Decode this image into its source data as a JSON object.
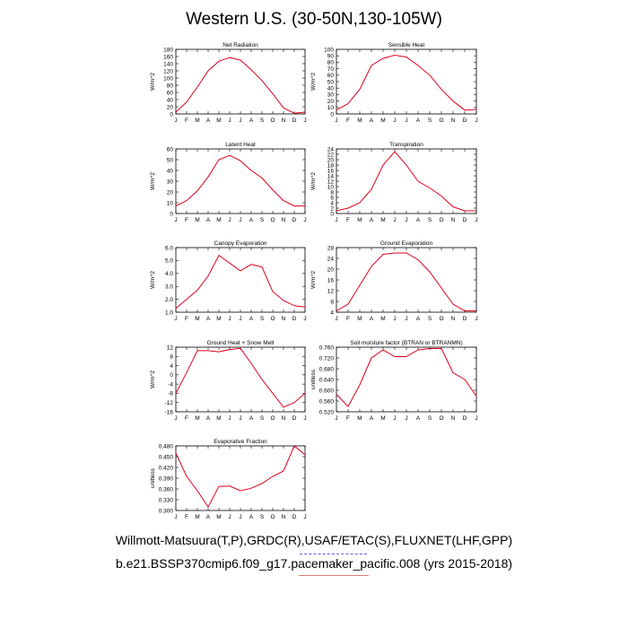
{
  "title": "Western U.S. (30-50N,130-105W)",
  "footer": {
    "line1": "Willmott-Matsuura(T,P),GRDC(R),USAF/ETAC(S),FLUXNET(LHF,GPP)",
    "line2": "b.e21.BSSP370cmip6.f09_g17.pacemaker_pacific.008 (yrs 2015-2018)"
  },
  "colors": {
    "line": "#e0001b",
    "axis": "#000000"
  },
  "months": [
    "J",
    "F",
    "M",
    "A",
    "M",
    "J",
    "J",
    "A",
    "S",
    "O",
    "N",
    "D",
    "J"
  ],
  "chart_data": [
    {
      "type": "line",
      "title": "Net Radiation",
      "ylabel": "W/m^2",
      "ylim": [
        0,
        180
      ],
      "yticks": [
        "0",
        "20",
        "40",
        "60",
        "80",
        "100",
        "120",
        "140",
        "160",
        "180"
      ],
      "series": [
        {
          "values": [
            5,
            33,
            75,
            120,
            147,
            157,
            150,
            123,
            93,
            56,
            17,
            2,
            5
          ]
        }
      ]
    },
    {
      "type": "line",
      "title": "Sensible Heat",
      "ylabel": "W/m^2",
      "ylim": [
        0,
        100
      ],
      "yticks": [
        "0",
        "10",
        "20",
        "30",
        "40",
        "50",
        "60",
        "70",
        "80",
        "90",
        "100"
      ],
      "series": [
        {
          "values": [
            6,
            16,
            38,
            75,
            86,
            91,
            88,
            75,
            60,
            38,
            20,
            6,
            7
          ]
        }
      ]
    },
    {
      "type": "line",
      "title": "Latent Heat",
      "ylabel": "W/m^2",
      "ylim": [
        0,
        60
      ],
      "yticks": [
        "0",
        "10",
        "20",
        "30",
        "40",
        "50",
        "60"
      ],
      "series": [
        {
          "values": [
            7,
            12,
            21,
            34,
            50,
            54,
            49,
            40,
            33,
            22,
            12,
            7,
            7
          ]
        }
      ]
    },
    {
      "type": "line",
      "title": "Transpiration",
      "ylabel": "W/m^2",
      "ylim": [
        0,
        24
      ],
      "yticks": [
        "0",
        "2",
        "4",
        "6",
        "8",
        "10",
        "12",
        "14",
        "16",
        "18",
        "20",
        "22",
        "24"
      ],
      "series": [
        {
          "values": [
            1,
            2,
            4,
            9,
            18,
            23,
            18,
            12,
            9.5,
            6.5,
            2.5,
            1,
            1
          ]
        }
      ]
    },
    {
      "type": "line",
      "title": "Canopy Evaporation",
      "ylabel": "W/m^2",
      "ylim": [
        1.0,
        6.0
      ],
      "yticks": [
        "1.0",
        "2.0",
        "3.0",
        "4.0",
        "5.0",
        "6.0"
      ],
      "series": [
        {
          "values": [
            1.3,
            2.0,
            2.7,
            3.8,
            5.4,
            4.8,
            4.2,
            4.7,
            4.5,
            2.6,
            1.9,
            1.5,
            1.4
          ]
        }
      ]
    },
    {
      "type": "line",
      "title": "Ground Evaporation",
      "ylabel": "W/m^2",
      "ylim": [
        4,
        28
      ],
      "yticks": [
        "4",
        "8",
        "12",
        "16",
        "20",
        "24",
        "28"
      ],
      "series": [
        {
          "values": [
            4.5,
            7,
            14,
            21,
            25.5,
            26,
            26,
            23.5,
            19,
            13,
            7,
            4.5,
            4.5
          ]
        }
      ]
    },
    {
      "type": "line",
      "title": "Ground Heat + Snow Melt",
      "ylabel": "W/m^2",
      "ylim": [
        -16,
        12
      ],
      "yticks": [
        "-16",
        "-12",
        "-8",
        "-4",
        "0",
        "4",
        "8",
        "12"
      ],
      "series": [
        {
          "values": [
            -8,
            1,
            10.5,
            10.5,
            10,
            11,
            11.5,
            5,
            -2,
            -8,
            -14,
            -12,
            -8
          ]
        }
      ]
    },
    {
      "type": "line",
      "title": "Soil moisture factor (BTRAN or BTRANMN)",
      "ylabel": "unitless",
      "ylim": [
        0.52,
        0.76
      ],
      "yticks": [
        "0.520",
        "0.560",
        "0.600",
        "0.640",
        "0.680",
        "0.720",
        "0.760"
      ],
      "series": [
        {
          "values": [
            0.585,
            0.54,
            0.62,
            0.72,
            0.75,
            0.725,
            0.725,
            0.75,
            0.755,
            0.755,
            0.665,
            0.64,
            0.578
          ]
        }
      ]
    },
    {
      "type": "line",
      "title": "Evaporative Fraction",
      "ylabel": "unitless",
      "ylim": [
        0.3,
        0.48
      ],
      "yticks": [
        "0.300",
        "0.330",
        "0.360",
        "0.390",
        "0.420",
        "0.450",
        "0.480"
      ],
      "series": [
        {
          "values": [
            0.46,
            0.395,
            0.355,
            0.31,
            0.367,
            0.368,
            0.355,
            0.362,
            0.375,
            0.395,
            0.41,
            0.48,
            0.455
          ]
        }
      ]
    }
  ]
}
